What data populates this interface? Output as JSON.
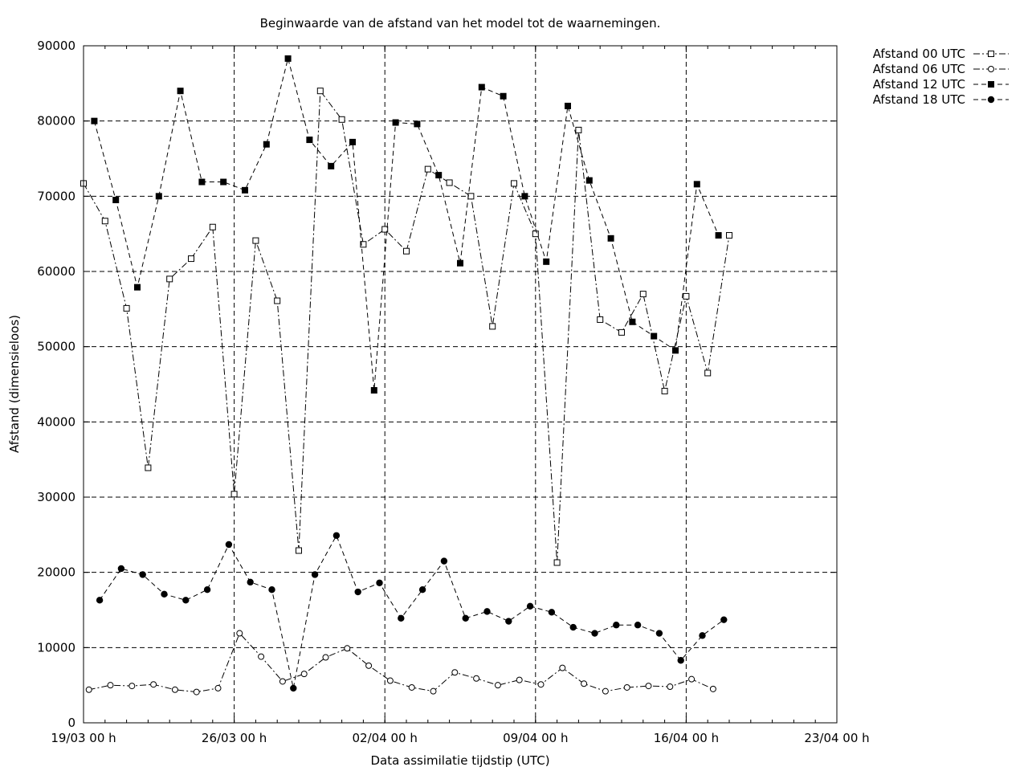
{
  "chart_data": {
    "type": "line",
    "title": "Beginwaarde van de afstand van het model tot de waarnemingen.",
    "xlabel": "Data assimilatie tijdstip (UTC)",
    "ylabel": "Afstand (dimensieloos)",
    "xlim": [
      "2015-03-19",
      "2015-04-23"
    ],
    "ylim": [
      0,
      90000
    ],
    "x_ticks": [
      "19/03 00 h",
      "26/03 00 h",
      "02/04 00 h",
      "09/04 00 h",
      "16/04 00 h",
      "23/04 00 h"
    ],
    "y_ticks": [
      "0",
      "10000",
      "20000",
      "30000",
      "40000",
      "50000",
      "60000",
      "70000",
      "80000",
      "90000"
    ],
    "grid": true,
    "legend_position": "outside-top-right",
    "series": [
      {
        "name": "Afstand 00 UTC",
        "marker": "open-square",
        "line": "dash-dot",
        "x": [
          "2015-03-19",
          "2015-03-20",
          "2015-03-21",
          "2015-03-22",
          "2015-03-23",
          "2015-03-24",
          "2015-03-25",
          "2015-03-26",
          "2015-03-27",
          "2015-03-28",
          "2015-03-29",
          "2015-03-30",
          "2015-03-31",
          "2015-04-01",
          "2015-04-02",
          "2015-04-03",
          "2015-04-04",
          "2015-04-05",
          "2015-04-06",
          "2015-04-07",
          "2015-04-08",
          "2015-04-09",
          "2015-04-10",
          "2015-04-11",
          "2015-04-12",
          "2015-04-13",
          "2015-04-14",
          "2015-04-15",
          "2015-04-16",
          "2015-04-17",
          "2015-04-18"
        ],
        "values": [
          71700,
          66700,
          55100,
          33900,
          59000,
          61700,
          65900,
          30400,
          64100,
          56100,
          22900,
          84000,
          80200,
          63600,
          65600,
          62700,
          73600,
          71800,
          70000,
          52700,
          71700,
          65000,
          21300,
          78800,
          53600,
          51900,
          57000,
          44100,
          56700,
          46500,
          64800
        ]
      },
      {
        "name": "Afstand 06 UTC",
        "marker": "open-circle",
        "line": "dash-dot",
        "x": [
          "2015-03-19",
          "2015-03-20",
          "2015-03-21",
          "2015-03-22",
          "2015-03-23",
          "2015-03-24",
          "2015-03-25",
          "2015-03-26",
          "2015-03-27",
          "2015-03-28",
          "2015-03-29",
          "2015-03-30",
          "2015-03-31",
          "2015-04-01",
          "2015-04-02",
          "2015-04-03",
          "2015-04-04",
          "2015-04-05",
          "2015-04-06",
          "2015-04-07",
          "2015-04-08",
          "2015-04-09",
          "2015-04-10",
          "2015-04-11",
          "2015-04-12",
          "2015-04-13",
          "2015-04-14",
          "2015-04-15",
          "2015-04-16",
          "2015-04-17"
        ],
        "values": [
          4400,
          5000,
          4900,
          5100,
          4400,
          4100,
          4600,
          11900,
          8800,
          5500,
          6500,
          8700,
          9900,
          7600,
          5600,
          4700,
          4200,
          6700,
          5900,
          5000,
          5700,
          5100,
          7300,
          5200,
          4200,
          4700,
          4900,
          4800,
          5800,
          4500
        ]
      },
      {
        "name": "Afstand 12 UTC",
        "marker": "filled-square",
        "line": "dashed",
        "x": [
          "2015-03-19",
          "2015-03-20",
          "2015-03-21",
          "2015-03-22",
          "2015-03-23",
          "2015-03-24",
          "2015-03-25",
          "2015-03-26",
          "2015-03-27",
          "2015-03-28",
          "2015-03-29",
          "2015-03-30",
          "2015-03-31",
          "2015-04-01",
          "2015-04-02",
          "2015-04-03",
          "2015-04-04",
          "2015-04-05",
          "2015-04-06",
          "2015-04-07",
          "2015-04-08",
          "2015-04-09",
          "2015-04-10",
          "2015-04-11",
          "2015-04-12",
          "2015-04-13",
          "2015-04-14",
          "2015-04-15",
          "2015-04-16",
          "2015-04-17"
        ],
        "values": [
          80000,
          69500,
          57900,
          70000,
          84000,
          71900,
          71900,
          70800,
          76900,
          88300,
          77500,
          74000,
          77200,
          44200,
          79800,
          79600,
          72800,
          61100,
          84500,
          83300,
          70000,
          61300,
          82000,
          72100,
          64400,
          53300,
          51400,
          49500,
          71600,
          64800
        ]
      },
      {
        "name": "Afstand 18 UTC",
        "marker": "filled-circle",
        "line": "dashed",
        "x": [
          "2015-03-19",
          "2015-03-20",
          "2015-03-21",
          "2015-03-22",
          "2015-03-23",
          "2015-03-24",
          "2015-03-25",
          "2015-03-26",
          "2015-03-27",
          "2015-03-28",
          "2015-03-29",
          "2015-03-30",
          "2015-03-31",
          "2015-04-01",
          "2015-04-02",
          "2015-04-03",
          "2015-04-04",
          "2015-04-05",
          "2015-04-06",
          "2015-04-07",
          "2015-04-08",
          "2015-04-09",
          "2015-04-10",
          "2015-04-11",
          "2015-04-12",
          "2015-04-13",
          "2015-04-14",
          "2015-04-15",
          "2015-04-16",
          "2015-04-17"
        ],
        "values": [
          16300,
          20500,
          19700,
          17100,
          16300,
          17700,
          23700,
          18700,
          17700,
          4600,
          19700,
          24900,
          17400,
          18600,
          13900,
          17700,
          21500,
          13900,
          14800,
          13500,
          15500,
          14700,
          12700,
          11900,
          13000,
          13000,
          11900,
          8300,
          11600,
          13700
        ]
      }
    ]
  }
}
